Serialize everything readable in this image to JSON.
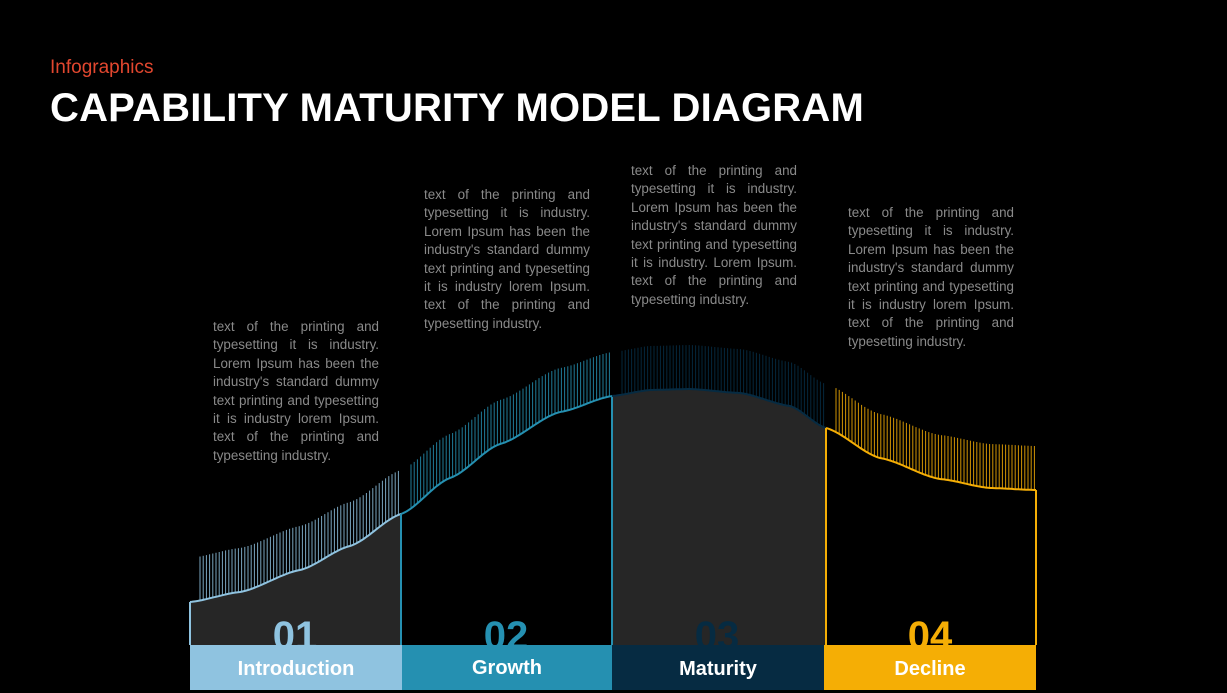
{
  "header": {
    "subtitle": "Infographics",
    "title": "CAPABILITY MATURITY MODEL DIAGRAM"
  },
  "colors": {
    "accent": "#e2472f",
    "introduction": "#8fc3e0",
    "growth": "#2590b1",
    "maturity": "#062b42",
    "decline": "#f5ae05",
    "panel": "#262626"
  },
  "stages": [
    {
      "number": "01",
      "label": "Introduction",
      "text": "text of the printing and typesetting it is industry. Lorem Ipsum has been the industry's standard dummy text printing and typesetting it is industry lorem Ipsum. text of the printing and typesetting industry."
    },
    {
      "number": "02",
      "label": "Growth",
      "text": "text of the printing and typesetting it is industry. Lorem Ipsum has been the industry's standard dummy text printing and typesetting it is industry lorem Ipsum. text of the printing and typesetting industry."
    },
    {
      "number": "03",
      "label": "Maturity",
      "text": "text of the printing and typesetting it is industry. Lorem Ipsum has been the industry's standard dummy text printing and typesetting it is industry. Lorem Ipsum. text of the printing and typesetting industry."
    },
    {
      "number": "04",
      "label": "Decline",
      "text": "text of the printing and typesetting it is industry. Lorem Ipsum has been the industry's standard dummy text printing and typesetting it is industry lorem Ipsum. text of the printing and typesetting industry."
    }
  ]
}
